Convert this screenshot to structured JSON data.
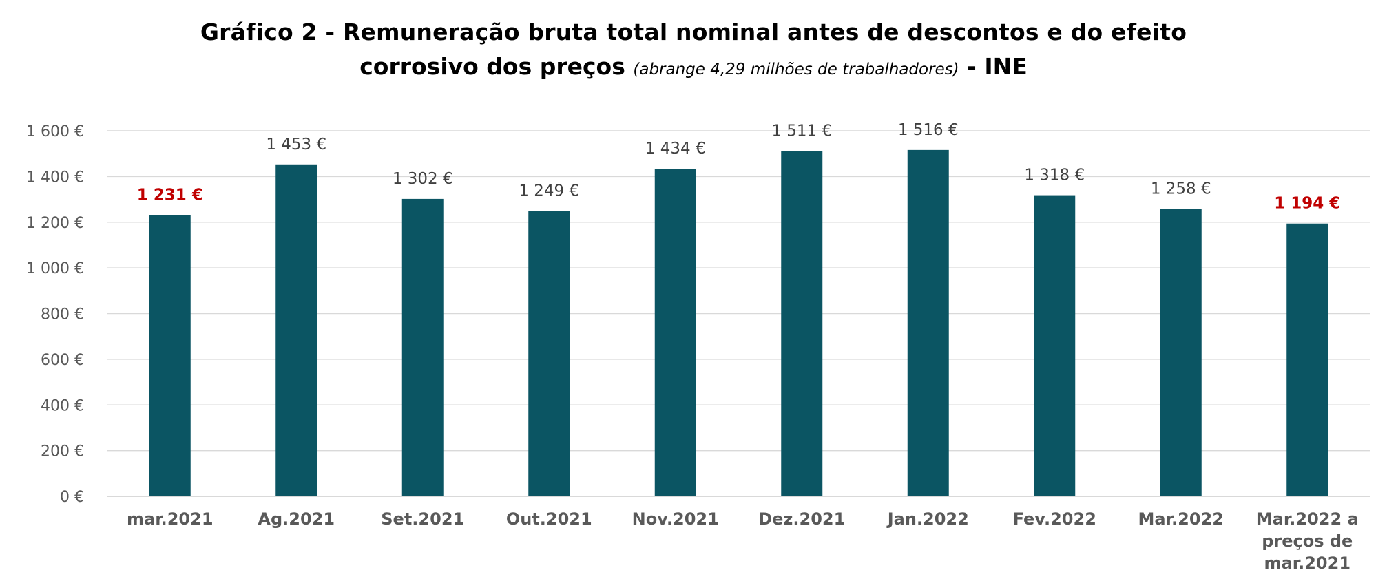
{
  "header": {
    "title_line1": "Gráfico 2 - Remuneração bruta total nominal antes de descontos e do efeito",
    "title_line2_a": "corrosivo dos preços",
    "title_line2_b": "(abrange 4,29 milhões de trabalhadores)",
    "title_line2_c": "- INE"
  },
  "colors": {
    "bar": "#0b5563",
    "highlight_label": "#c00000",
    "grid": "#d9d9d9",
    "text": "#595959"
  },
  "chart_data": {
    "type": "bar",
    "title": "Gráfico 2 - Remuneração bruta total nominal antes de descontos e do efeito corrosivo dos preços (abrange 4,29 milhões de trabalhadores) - INE",
    "xlabel": "",
    "ylabel": "",
    "ylim": [
      0,
      1600
    ],
    "yticks": [
      0,
      200,
      400,
      600,
      800,
      1000,
      1200,
      1400,
      1600
    ],
    "ytick_labels": [
      "0 €",
      "200 €",
      "400 €",
      "600 €",
      "800 €",
      "1 000 €",
      "1 200 €",
      "1 400 €",
      "1 600 €"
    ],
    "grid": true,
    "legend": "none",
    "categories": [
      [
        "mar.2021"
      ],
      [
        "Ag.2021"
      ],
      [
        "Set.2021"
      ],
      [
        "Out.2021"
      ],
      [
        "Nov.2021"
      ],
      [
        "Dez.2021"
      ],
      [
        "Jan.2022"
      ],
      [
        "Fev.2022"
      ],
      [
        "Mar.2022"
      ],
      [
        "Mar.2022 a",
        "preços de",
        "mar.2021"
      ]
    ],
    "values": [
      1231,
      1453,
      1302,
      1249,
      1434,
      1511,
      1516,
      1318,
      1258,
      1194
    ],
    "data_labels": [
      "1 231 €",
      "1 453 €",
      "1 302 €",
      "1 249 €",
      "1 434 €",
      "1 511 €",
      "1 516 €",
      "1 318 €",
      "1 258 €",
      "1 194 €"
    ],
    "highlighted": [
      0,
      9
    ]
  }
}
